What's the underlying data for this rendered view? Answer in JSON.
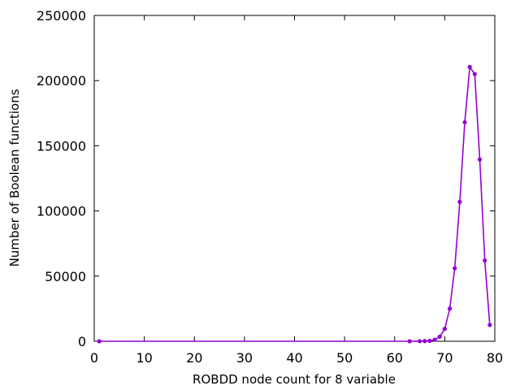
{
  "chart_data": {
    "type": "line",
    "title": "",
    "xlabel": "ROBDD node count for 8 variable",
    "ylabel": "Number of Boolean functions",
    "xlim": [
      0,
      80
    ],
    "ylim": [
      0,
      250000
    ],
    "x_ticks": [
      "0",
      "10",
      "20",
      "30",
      "40",
      "50",
      "60",
      "70",
      "80"
    ],
    "y_ticks": [
      "0",
      "50000",
      "100000",
      "150000",
      "200000",
      "250000"
    ],
    "grid": false,
    "legend": "none",
    "series": [
      {
        "color": "#9400d3",
        "x": [
          1,
          63,
          65,
          66,
          67,
          68,
          69,
          70,
          71,
          72,
          73,
          74,
          75,
          76,
          77,
          78,
          79
        ],
        "y": [
          2,
          10,
          50,
          150,
          300,
          1200,
          3500,
          9500,
          25000,
          56000,
          107000,
          168000,
          210500,
          205000,
          139500,
          62000,
          12500
        ]
      }
    ]
  }
}
